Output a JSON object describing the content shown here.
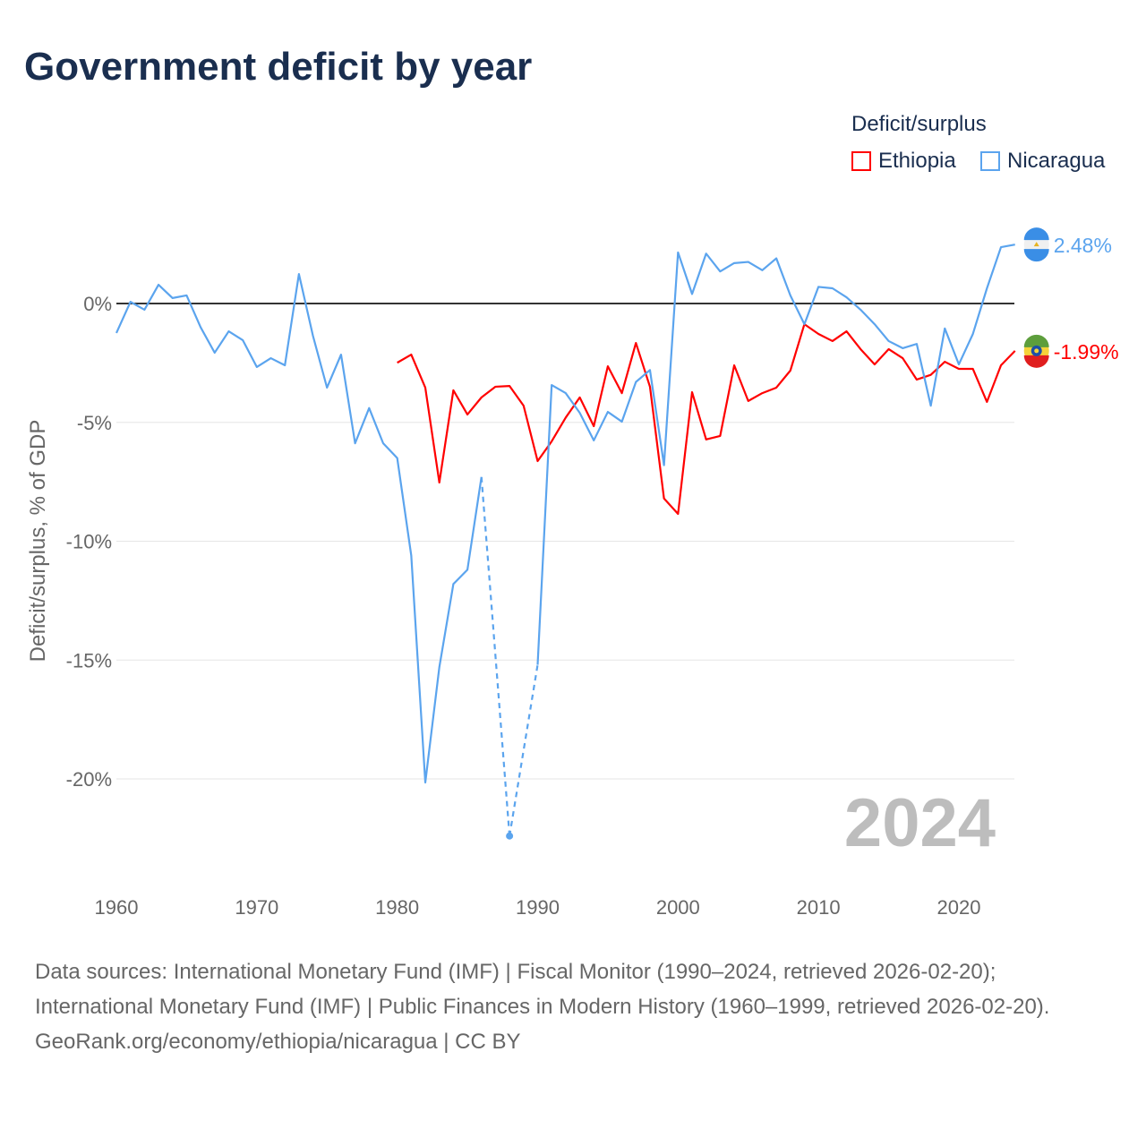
{
  "title": "Government deficit by year",
  "legend": {
    "title": "Deficit/surplus",
    "items": [
      {
        "label": "Ethiopia",
        "color": "#ff0000"
      },
      {
        "label": "Nicaragua",
        "color": "#5ba4ee"
      }
    ]
  },
  "footer": {
    "sources": "Data sources: International Monetary Fund (IMF) | Fiscal Monitor (1990–2024, retrieved 2026-02-20); International Monetary Fund (IMF) | Public Finances in Modern History (1960–1999, retrieved 2026-02-20).",
    "credit": "GeoRank.org/economy/ethiopia/nicaragua | CC BY"
  },
  "chart_data": {
    "type": "line",
    "title": "Government deficit by year",
    "ylabel": "Deficit/surplus, % of GDP",
    "xlabel": "",
    "year_watermark": "2024",
    "xlim": [
      1960,
      2024
    ],
    "ylim": [
      -23.5,
      3.5
    ],
    "xticks": [
      1960,
      1970,
      1980,
      1990,
      2000,
      2010,
      2020
    ],
    "yticks": [
      0,
      -5,
      -10,
      -15,
      -20
    ],
    "ytick_labels": [
      "0%",
      "-5%",
      "-10%",
      "-15%",
      "-20%"
    ],
    "series": [
      {
        "name": "Ethiopia",
        "color": "#ff0000",
        "end_label": "-1.99%",
        "x": [
          1980,
          1981,
          1982,
          1983,
          1984,
          1985,
          1986,
          1987,
          1988,
          1989,
          1990,
          1991,
          1992,
          1993,
          1994,
          1995,
          1996,
          1997,
          1998,
          1999,
          2000,
          2001,
          2002,
          2003,
          2004,
          2005,
          2006,
          2007,
          2008,
          2009,
          2010,
          2011,
          2012,
          2013,
          2014,
          2015,
          2016,
          2017,
          2018,
          2019,
          2020,
          2021,
          2022,
          2023,
          2024
        ],
        "values": [
          -2.49,
          -2.15,
          -3.54,
          -7.53,
          -3.65,
          -4.67,
          -3.95,
          -3.5,
          -3.47,
          -4.3,
          -6.63,
          -5.8,
          -4.8,
          -3.95,
          -5.16,
          -2.64,
          -3.77,
          -1.66,
          -3.5,
          -8.2,
          -8.85,
          -3.73,
          -5.72,
          -5.57,
          -2.6,
          -4.1,
          -3.77,
          -3.54,
          -2.82,
          -0.87,
          -1.28,
          -1.58,
          -1.17,
          -1.92,
          -2.56,
          -1.92,
          -2.3,
          -3.2,
          -3.0,
          -2.45,
          -2.75,
          -2.75,
          -4.14,
          -2.6,
          -1.99
        ]
      },
      {
        "name": "Nicaragua",
        "color": "#5ba4ee",
        "end_label": "2.48%",
        "x": [
          1960,
          1961,
          1962,
          1963,
          1964,
          1965,
          1966,
          1967,
          1968,
          1969,
          1970,
          1971,
          1972,
          1973,
          1974,
          1975,
          1976,
          1977,
          1978,
          1979,
          1980,
          1981,
          1982,
          1983,
          1984,
          1985,
          1986,
          1988,
          1990,
          1991,
          1992,
          1993,
          1994,
          1995,
          1996,
          1997,
          1998,
          1999,
          2000,
          2001,
          2002,
          2003,
          2004,
          2005,
          2006,
          2007,
          2008,
          2009,
          2010,
          2011,
          2012,
          2013,
          2014,
          2015,
          2016,
          2017,
          2018,
          2019,
          2020,
          2021,
          2022,
          2023,
          2024
        ],
        "values": [
          -1.24,
          0.07,
          -0.26,
          0.79,
          0.23,
          0.34,
          -1.0,
          -2.07,
          -1.17,
          -1.54,
          -2.67,
          -2.3,
          -2.6,
          1.24,
          -1.36,
          -3.54,
          -2.15,
          -5.88,
          -4.4,
          -5.88,
          -6.5,
          -10.6,
          -20.15,
          -15.3,
          -11.8,
          -11.2,
          -7.3,
          -22.4,
          -15.2,
          -3.43,
          -3.77,
          -4.6,
          -5.76,
          -4.56,
          -4.97,
          -3.3,
          -2.8,
          -6.8,
          2.15,
          0.4,
          2.1,
          1.35,
          1.7,
          1.75,
          1.4,
          1.9,
          0.34,
          -0.87,
          0.7,
          0.64,
          0.26,
          -0.26,
          -0.87,
          -1.58,
          -1.88,
          -1.7,
          -4.3,
          -1.05,
          -2.56,
          -1.28,
          0.64,
          2.37,
          2.48
        ]
      }
    ]
  }
}
